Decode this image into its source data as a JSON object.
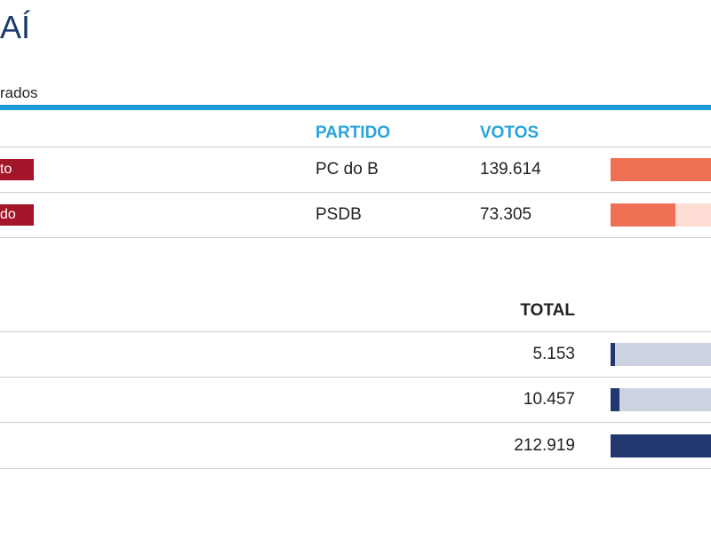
{
  "header": {
    "title": "AÍ",
    "subtitle": "rados"
  },
  "candidates": {
    "columns": [
      "PARTIDO",
      "VOTOS"
    ],
    "rows": [
      {
        "status": "to",
        "party": "PC do B",
        "votes": {
          "value": 139614,
          "label": "139.614"
        }
      },
      {
        "status": "do",
        "party": "PSDB",
        "votes": {
          "value": 73305,
          "label": "73.305"
        }
      }
    ]
  },
  "totals": {
    "column": "TOTAL",
    "rows": [
      {
        "value": 5153,
        "label": "5.153"
      },
      {
        "value": 10457,
        "label": "10.457"
      },
      {
        "value": 212919,
        "label": "212.919"
      }
    ]
  }
}
